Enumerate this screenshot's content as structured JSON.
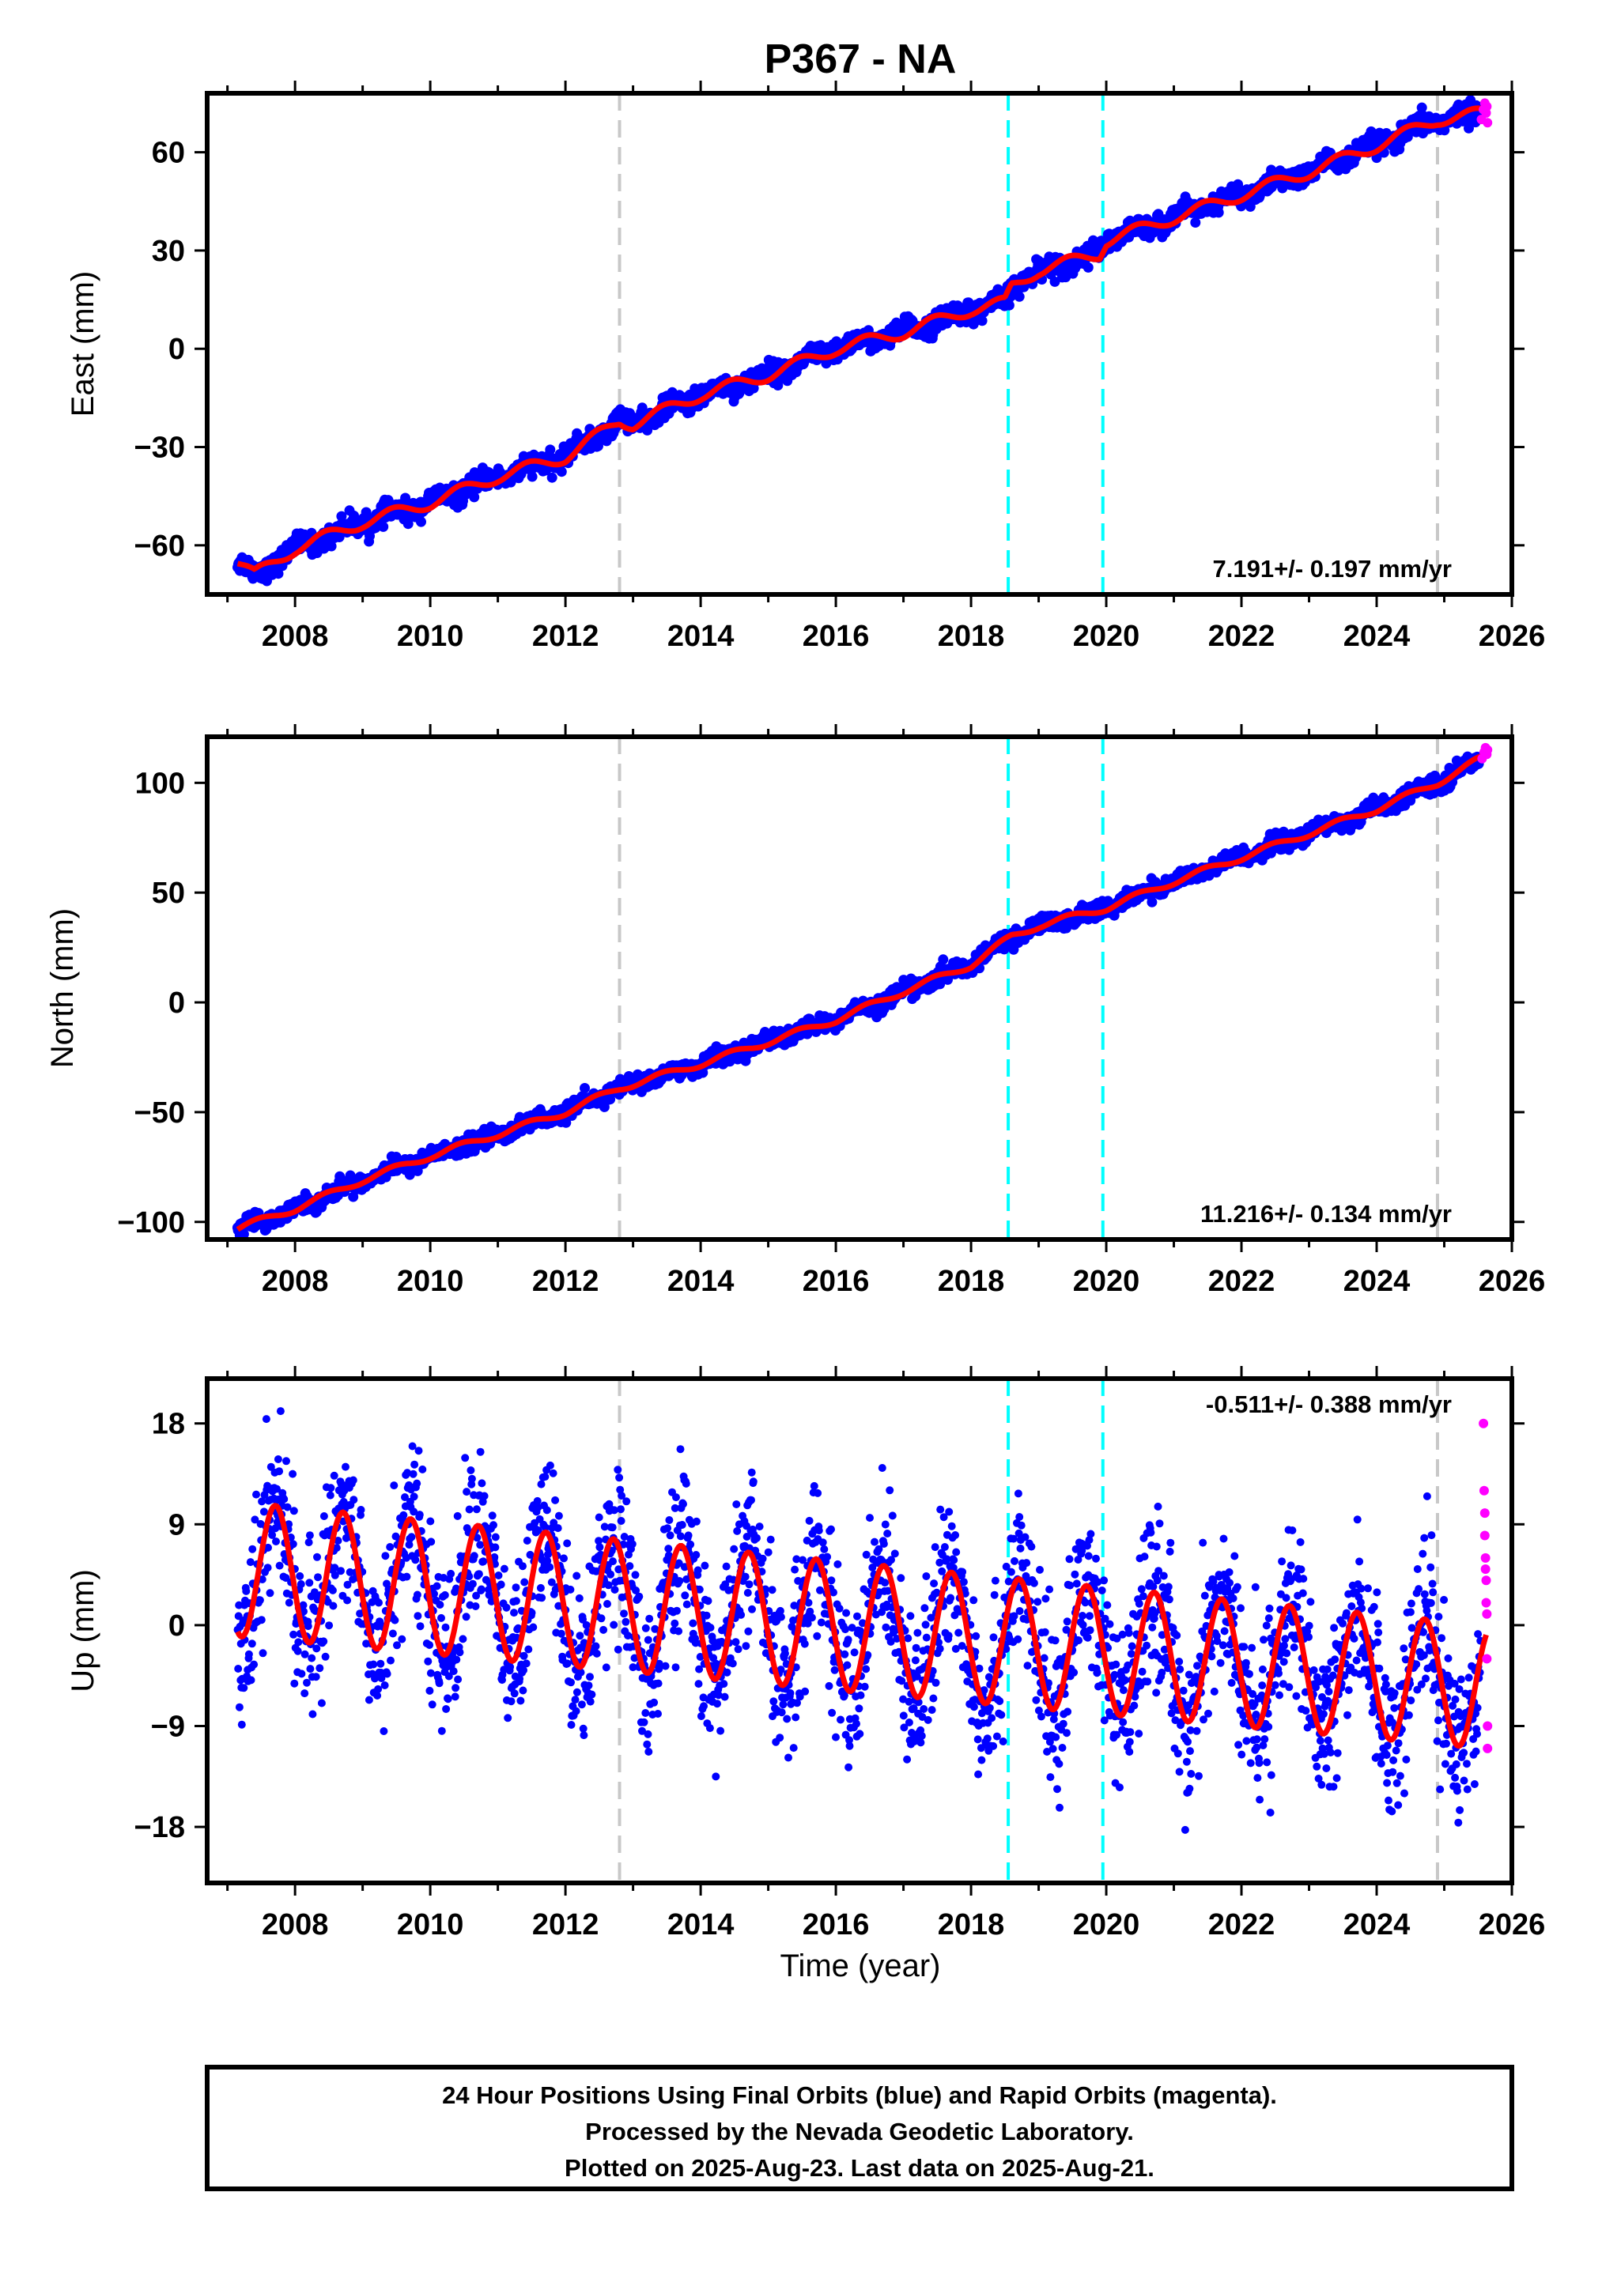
{
  "figure": {
    "title": "P367 - NA",
    "xlabel": "Time (year)",
    "colors": {
      "final_orbits": "#0000ff",
      "rapid_orbits": "#ff00ff",
      "model_fit": "#ff0000",
      "equipment_change": "#c8c8c8",
      "earthquake": "#00ffff"
    },
    "footer": {
      "line1": "24 Hour Positions Using Final Orbits (blue) and Rapid Orbits (magenta).",
      "line2": "Processed by the Nevada Geodetic Laboratory.",
      "line3": "Plotted on 2025-Aug-23. Last data on 2025-Aug-21."
    }
  },
  "chart_data": [
    {
      "type": "scatter",
      "ylabel": "East (mm)",
      "rate_label": "7.191+/- 0.197 mm/yr",
      "rate_position": "bottom-right",
      "xlim": [
        2006.7,
        2026
      ],
      "ylim": [
        -75,
        78
      ],
      "xticks": [
        2008,
        2010,
        2012,
        2014,
        2016,
        2018,
        2020,
        2022,
        2024,
        2026
      ],
      "yticks": [
        -60,
        -30,
        0,
        30,
        60
      ],
      "ytick_labels": [
        "−60",
        "−30",
        "0",
        "30",
        "60"
      ],
      "vlines": [
        {
          "x": 2012.8,
          "color": "gray"
        },
        {
          "x": 2018.55,
          "color": "cyan"
        },
        {
          "x": 2019.95,
          "color": "cyan"
        },
        {
          "x": 2024.9,
          "color": "gray"
        }
      ],
      "series": [
        {
          "color": "red",
          "kind": "line",
          "x": [
            2007.15,
            2007.4,
            2008,
            2009,
            2010,
            2011,
            2012,
            2012.8,
            2013,
            2014,
            2015,
            2016,
            2017,
            2018,
            2018.5,
            2018.6,
            2019,
            2019.9,
            2020,
            2021,
            2022,
            2023,
            2024,
            2024.9,
            2025.6
          ],
          "y": [
            -65,
            -69,
            -61,
            -53,
            -47,
            -39,
            -33,
            -22,
            -23,
            -14,
            -8,
            0,
            5,
            12,
            14,
            19,
            24,
            29,
            33,
            40,
            47,
            54,
            62,
            70,
            72
          ]
        },
        {
          "color": "magenta",
          "kind": "points",
          "x": [
            2025.55,
            2025.58,
            2025.6,
            2025.62,
            2025.63,
            2025.64
          ],
          "y": [
            70,
            73,
            75,
            72,
            74,
            69
          ]
        }
      ],
      "scatter_spread": 2.5
    },
    {
      "type": "scatter",
      "ylabel": "North (mm)",
      "rate_label": "11.216+/- 0.134 mm/yr",
      "rate_position": "bottom-right",
      "xlim": [
        2006.7,
        2026
      ],
      "ylim": [
        -108,
        121
      ],
      "xticks": [
        2008,
        2010,
        2012,
        2014,
        2016,
        2018,
        2020,
        2022,
        2024,
        2026
      ],
      "yticks": [
        -100,
        -50,
        0,
        50,
        100
      ],
      "ytick_labels": [
        "−100",
        "−50",
        "0",
        "50",
        "100"
      ],
      "vlines": [
        {
          "x": 2012.8,
          "color": "gray"
        },
        {
          "x": 2018.55,
          "color": "cyan"
        },
        {
          "x": 2019.95,
          "color": "cyan"
        },
        {
          "x": 2024.9,
          "color": "gray"
        }
      ],
      "series": [
        {
          "color": "red",
          "kind": "line",
          "x": [
            2007.15,
            2008,
            2009,
            2010,
            2011,
            2012,
            2012.8,
            2014,
            2015,
            2016,
            2017,
            2018,
            2018.6,
            2019,
            2020,
            2021,
            2022,
            2023,
            2024,
            2024.9,
            2025.6
          ],
          "y": [
            -103,
            -94,
            -81,
            -70,
            -60,
            -50,
            -39,
            -28,
            -18,
            -8,
            5,
            17,
            30,
            35,
            43,
            55,
            66,
            77,
            88,
            100,
            112
          ]
        },
        {
          "color": "magenta",
          "kind": "points",
          "x": [
            2025.56,
            2025.59,
            2025.61,
            2025.63,
            2025.64
          ],
          "y": [
            111,
            114,
            116,
            113,
            115
          ]
        }
      ],
      "scatter_spread": 3
    },
    {
      "type": "scatter",
      "ylabel": "Up (mm)",
      "rate_label": "-0.511+/- 0.388 mm/yr",
      "rate_position": "top-right",
      "xlim": [
        2006.7,
        2026
      ],
      "ylim": [
        -23,
        22
      ],
      "xticks": [
        2008,
        2010,
        2012,
        2014,
        2016,
        2018,
        2020,
        2022,
        2024,
        2026
      ],
      "yticks": [
        -18,
        -9,
        0,
        9,
        18
      ],
      "ytick_labels": [
        "−18",
        "−9",
        "0",
        "9",
        "18"
      ],
      "vlines": [
        {
          "x": 2012.8,
          "color": "gray"
        },
        {
          "x": 2018.55,
          "color": "cyan"
        },
        {
          "x": 2019.95,
          "color": "cyan"
        },
        {
          "x": 2024.9,
          "color": "gray"
        }
      ],
      "series": [
        {
          "color": "red",
          "kind": "seasonal",
          "x_start": 2007.15,
          "x_end": 2025.62,
          "mean_start": 5.0,
          "mean_end": -5.5,
          "amp_start": 6.0,
          "amp_end": 5.5,
          "peak_phase": 0.71
        },
        {
          "color": "magenta",
          "kind": "points",
          "x": [
            2025.58,
            2025.59,
            2025.6,
            2025.6,
            2025.61,
            2025.61,
            2025.62,
            2025.62,
            2025.63,
            2025.63,
            2025.64,
            2025.64
          ],
          "y": [
            18,
            12,
            10,
            8,
            6,
            5,
            4,
            2,
            1,
            -3,
            -9,
            -11
          ]
        }
      ],
      "scatter_spread": 3.5
    }
  ]
}
